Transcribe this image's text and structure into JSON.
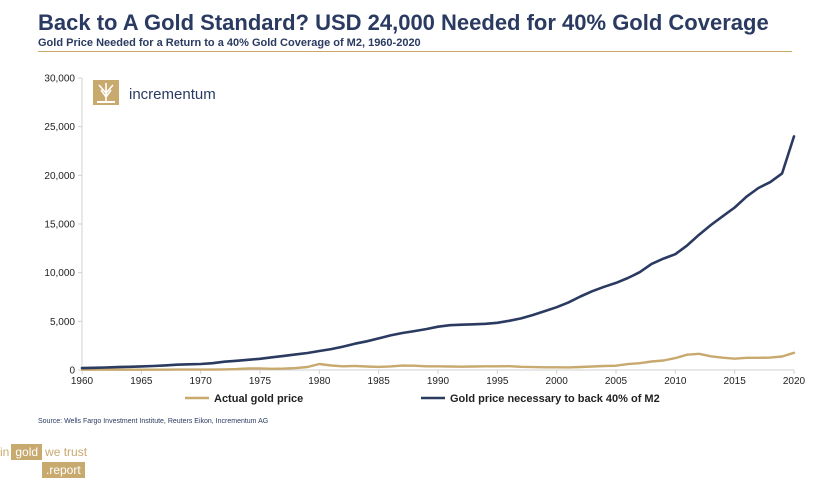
{
  "header": {
    "title": "Back to A Gold Standard? USD 24,000 Needed for 40% Gold Coverage",
    "subtitle": "Gold Price Needed for a Return to a 40% Gold Coverage of M2, 1960-2020"
  },
  "logo": {
    "text": "incrementum",
    "icon": "tree-icon"
  },
  "source": "Source: Wells Fargo Investment Institute, Reuters Eikon, Incrementum AG",
  "brand": {
    "pre": "in",
    "box": "gold",
    "post": "we trust",
    "domain": ".report"
  },
  "colors": {
    "navy": "#2a3a61",
    "gold": "#c8a96e",
    "axis": "#d0d0d0"
  },
  "chart_data": {
    "type": "line",
    "title": "Gold Price Needed for a Return to a 40% Gold Coverage of M2, 1960-2020",
    "xlabel": "",
    "ylabel": "",
    "xlim": [
      1960,
      2020
    ],
    "ylim": [
      0,
      30000
    ],
    "grid": false,
    "legend_position": "bottom",
    "x": [
      1960,
      1961,
      1962,
      1963,
      1964,
      1965,
      1966,
      1967,
      1968,
      1969,
      1970,
      1971,
      1972,
      1973,
      1974,
      1975,
      1976,
      1977,
      1978,
      1979,
      1980,
      1981,
      1982,
      1983,
      1984,
      1985,
      1986,
      1987,
      1988,
      1989,
      1990,
      1991,
      1992,
      1993,
      1994,
      1995,
      1996,
      1997,
      1998,
      1999,
      2000,
      2001,
      2002,
      2003,
      2004,
      2005,
      2006,
      2007,
      2008,
      2009,
      2010,
      2011,
      2012,
      2013,
      2014,
      2015,
      2016,
      2017,
      2018,
      2019,
      2020
    ],
    "x_ticks": [
      "1960",
      "1965",
      "1970",
      "1975",
      "1980",
      "1985",
      "1990",
      "1995",
      "2000",
      "2005",
      "2010",
      "2015",
      "2020"
    ],
    "y_ticks": [
      "0",
      "5,000",
      "10,000",
      "15,000",
      "20,000",
      "25,000",
      "30,000"
    ],
    "x_tick_values": [
      1960,
      1965,
      1970,
      1975,
      1980,
      1985,
      1990,
      1995,
      2000,
      2005,
      2010,
      2015,
      2020
    ],
    "y_tick_values": [
      0,
      5000,
      10000,
      15000,
      20000,
      25000,
      30000
    ],
    "series": [
      {
        "name": "Actual gold price",
        "color": "#c8a96e",
        "values": [
          35,
          35,
          35,
          35,
          35,
          35,
          35,
          35,
          39,
          41,
          36,
          41,
          58,
          97,
          154,
          160,
          125,
          148,
          193,
          306,
          612,
          460,
          376,
          424,
          361,
          317,
          368,
          447,
          437,
          381,
          384,
          362,
          344,
          360,
          384,
          384,
          388,
          331,
          294,
          279,
          279,
          271,
          310,
          364,
          409,
          445,
          604,
          697,
          872,
          972,
          1225,
          1572,
          1669,
          1411,
          1266,
          1160,
          1251,
          1257,
          1269,
          1392,
          1770
        ]
      },
      {
        "name": "Gold price necessary to back 40% of M2",
        "color": "#2a3a61",
        "values": [
          200,
          230,
          260,
          300,
          330,
          370,
          410,
          470,
          540,
          590,
          620,
          700,
          850,
          950,
          1050,
          1150,
          1300,
          1450,
          1600,
          1750,
          1950,
          2150,
          2400,
          2700,
          2950,
          3250,
          3550,
          3800,
          4000,
          4200,
          4450,
          4600,
          4650,
          4700,
          4750,
          4850,
          5050,
          5300,
          5650,
          6050,
          6450,
          6950,
          7550,
          8100,
          8550,
          8950,
          9450,
          10050,
          10900,
          11450,
          11900,
          12800,
          13900,
          14900,
          15800,
          16700,
          17800,
          18700,
          19300,
          20200,
          24000
        ]
      }
    ]
  }
}
